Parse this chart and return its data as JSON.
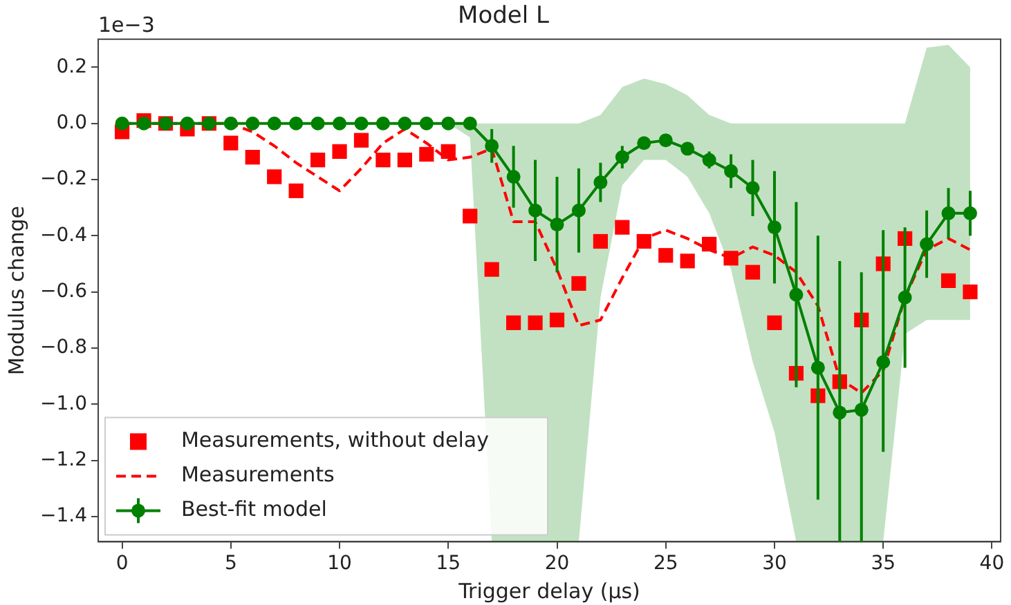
{
  "chart_data": {
    "type": "line",
    "title": "Model L",
    "xlabel": "Trigger delay (μs)",
    "ylabel": "Modulus change",
    "annotations": [
      "1e−3"
    ],
    "x": [
      0,
      1,
      2,
      3,
      4,
      5,
      6,
      7,
      8,
      9,
      10,
      11,
      12,
      13,
      14,
      15,
      16,
      17,
      18,
      19,
      20,
      21,
      22,
      23,
      24,
      25,
      26,
      27,
      28,
      29,
      30,
      31,
      32,
      33,
      34,
      35,
      36,
      37,
      38,
      39
    ],
    "xlim": [
      -1.1,
      40.4
    ],
    "xticks": [
      0,
      5,
      10,
      15,
      20,
      25,
      30,
      35,
      40
    ],
    "ylim": [
      -1.49,
      0.3
    ],
    "yticks": [
      {
        "value": 0.2,
        "label": "0.2"
      },
      {
        "value": 0,
        "label": "0.0"
      },
      {
        "value": -0.2,
        "label": "−0.2"
      },
      {
        "value": -0.4,
        "label": "−0.4"
      },
      {
        "value": -0.6,
        "label": "−0.6"
      },
      {
        "value": -0.8,
        "label": "−0.8"
      },
      {
        "value": -1,
        "label": "−1.0"
      },
      {
        "value": -1.2,
        "label": "−1.2"
      },
      {
        "value": -1.4,
        "label": "−1.4"
      }
    ],
    "legend": "bottom left",
    "series": [
      {
        "name": "Measurements, without delay",
        "type": "scatter",
        "marker": "square",
        "color": "#ff0000",
        "values": [
          -0.03,
          0.01,
          0,
          -0.02,
          0,
          -0.07,
          -0.12,
          -0.19,
          -0.24,
          -0.13,
          -0.1,
          -0.06,
          -0.13,
          -0.13,
          -0.11,
          -0.1,
          -0.33,
          -0.52,
          -0.71,
          -0.71,
          -0.7,
          -0.57,
          -0.42,
          -0.37,
          -0.42,
          -0.47,
          -0.49,
          -0.43,
          -0.48,
          -0.53,
          -0.71,
          -0.89,
          -0.97,
          -0.92,
          -0.7,
          -0.5,
          -0.41,
          null,
          -0.56,
          -0.6
        ]
      },
      {
        "name": "Measurements",
        "marker": "none",
        "line_style": "dashed",
        "color": "#ff0000",
        "values": [
          0,
          0,
          0,
          0,
          0,
          0,
          -0.03,
          -0.08,
          -0.14,
          -0.19,
          -0.24,
          -0.16,
          -0.07,
          -0.02,
          -0.07,
          -0.13,
          -0.12,
          -0.09,
          -0.35,
          -0.35,
          -0.52,
          -0.72,
          -0.7,
          -0.55,
          -0.41,
          -0.38,
          -0.41,
          -0.45,
          -0.48,
          -0.44,
          -0.47,
          -0.53,
          -0.65,
          -0.91,
          -0.96,
          -0.88,
          -0.62,
          -0.45,
          -0.41,
          -0.45
        ]
      },
      {
        "name": "Best-fit model",
        "marker": "circle",
        "line_style": "solid",
        "color": "#008000",
        "values": [
          0,
          0,
          0,
          0,
          0,
          0,
          0,
          0,
          0,
          0,
          0,
          0,
          0,
          0,
          0,
          0,
          0,
          -0.08,
          -0.19,
          -0.31,
          -0.36,
          -0.31,
          -0.21,
          -0.12,
          -0.07,
          -0.06,
          -0.09,
          -0.13,
          -0.17,
          -0.23,
          -0.37,
          -0.61,
          -0.87,
          -1.03,
          -1.02,
          -0.85,
          -0.62,
          -0.43,
          -0.32,
          -0.32
        ],
        "errors": [
          null,
          null,
          null,
          null,
          null,
          null,
          null,
          null,
          null,
          null,
          null,
          null,
          null,
          null,
          null,
          null,
          null,
          0.06,
          0.11,
          0.18,
          0.17,
          0.15,
          0.07,
          0.04,
          0.02,
          0.02,
          0.02,
          0.03,
          0.06,
          0.1,
          0.2,
          0.33,
          0.47,
          [
            -1.49,
            -0.49
          ],
          [
            -1.49,
            -0.53
          ],
          [
            -1.17,
            -0.38
          ],
          0.25,
          0.12,
          0.09,
          0.08
        ],
        "lower": [
          0,
          0,
          0,
          0,
          0,
          0,
          0,
          0,
          0,
          0,
          0,
          0,
          0,
          0,
          0,
          0,
          -0.05,
          -1.49,
          -1.49,
          -1.49,
          -1.49,
          -1.49,
          -0.62,
          -0.22,
          -0.13,
          -0.13,
          -0.19,
          -0.32,
          -0.52,
          -0.85,
          -1.1,
          -1.49,
          -1.49,
          -1.49,
          -1.49,
          -1.49,
          -0.75,
          -0.7,
          -0.7,
          -0.7
        ],
        "upper": [
          0,
          0,
          0,
          0,
          0,
          0,
          0,
          0,
          0,
          0,
          0,
          0,
          0,
          0,
          0,
          0,
          0,
          0,
          0,
          0,
          0,
          0,
          0.03,
          0.13,
          0.16,
          0.14,
          0.1,
          0.03,
          0,
          0,
          0,
          0,
          0,
          0,
          0,
          0,
          0,
          0.27,
          0.28,
          0.2
        ]
      }
    ]
  }
}
